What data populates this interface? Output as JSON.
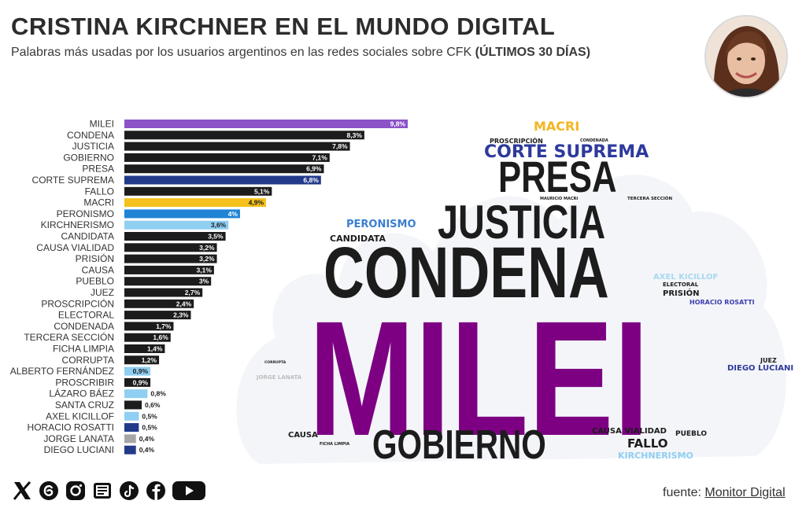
{
  "header": {
    "title": "CRISTINA KIRCHNER EN EL MUNDO DIGITAL",
    "subtitle": "Palabras más usadas por los usuarios argentinos en las redes sociales sobre CFK",
    "subtitle_bold": "(ÚLTIMOS 30 DÍAS)"
  },
  "chart_data": {
    "type": "bar",
    "orientation": "horizontal",
    "title": "Palabras más usadas por los usuarios argentinos en las redes sociales sobre CFK (ÚLTIMOS 30 DÍAS)",
    "xlabel": "",
    "ylabel": "",
    "unit": "%",
    "xlim": [
      0,
      9.8
    ],
    "categories": [
      "MILEI",
      "CONDENA",
      "JUSTICIA",
      "GOBIERNO",
      "PRESA",
      "CORTE SUPREMA",
      "FALLO",
      "MACRI",
      "PERONISMO",
      "KIRCHNERISMO",
      "CANDIDATA",
      "CAUSA VIALIDAD",
      "PRISIÓN",
      "CAUSA",
      "PUEBLO",
      "JUEZ",
      "PROSCRIPCIÓN",
      "ELECTORAL",
      "CONDENADA",
      "TERCERA SECCIÓN",
      "FICHA LIMPIA",
      "CORRUPTA",
      "ALBERTO FERNÁNDEZ",
      "PROSCRIBIR",
      "LÁZARO BÁEZ",
      "SANTA CRUZ",
      "AXEL KICILLOF",
      "HORACIO ROSATTI",
      "JORGE LANATA",
      "DIEGO LUCIANI"
    ],
    "values": [
      9.8,
      8.3,
      7.8,
      7.1,
      6.9,
      6.8,
      5.1,
      4.9,
      4.0,
      3.6,
      3.5,
      3.2,
      3.2,
      3.1,
      3.0,
      2.7,
      2.4,
      2.3,
      1.7,
      1.6,
      1.4,
      1.2,
      0.9,
      0.9,
      0.8,
      0.6,
      0.5,
      0.5,
      0.4,
      0.4
    ],
    "labels": [
      "9,8%",
      "8,3%",
      "7,8%",
      "7,1%",
      "6,9%",
      "6,8%",
      "5,1%",
      "4,9%",
      "4%",
      "3,6%",
      "3,5%",
      "3,2%",
      "3,2%",
      "3,1%",
      "3%",
      "2,7%",
      "2,4%",
      "2,3%",
      "1,7%",
      "1,6%",
      "1,4%",
      "1,2%",
      "0,9%",
      "0,9%",
      "0,8%",
      "0,6%",
      "0,5%",
      "0,5%",
      "0,4%",
      "0,4%"
    ],
    "colors": [
      "#8c52c8",
      "#1c1c1c",
      "#1c1c1c",
      "#1c1c1c",
      "#1c1c1c",
      "#233a8a",
      "#1c1c1c",
      "#f4c11d",
      "#1f83d6",
      "#8ecff2",
      "#1c1c1c",
      "#1c1c1c",
      "#1c1c1c",
      "#1c1c1c",
      "#1c1c1c",
      "#1c1c1c",
      "#1c1c1c",
      "#1c1c1c",
      "#1c1c1c",
      "#1c1c1c",
      "#1c1c1c",
      "#1c1c1c",
      "#8ecff2",
      "#1c1c1c",
      "#8ecff2",
      "#1c1c1c",
      "#8ecff2",
      "#233a8a",
      "#a6a6a6",
      "#233a8a"
    ]
  },
  "wordcloud": [
    {
      "text": "MILEI",
      "color": "#7d0083"
    },
    {
      "text": "CONDENA",
      "color": "#1c1c1c"
    },
    {
      "text": "JUSTICIA",
      "color": "#1c1c1c"
    },
    {
      "text": "PRESA",
      "color": "#1c1c1c"
    },
    {
      "text": "GOBIERNO",
      "color": "#1c1c1c"
    },
    {
      "text": "CORTE SUPREMA",
      "color": "#2d3a9c"
    },
    {
      "text": "MACRI",
      "color": "#f4b520"
    },
    {
      "text": "PERONISMO",
      "color": "#3b7fd0"
    },
    {
      "text": "CANDIDATA",
      "color": "#1c1c1c"
    },
    {
      "text": "FALLO",
      "color": "#1c1c1c"
    },
    {
      "text": "CAUSA VIALIDAD",
      "color": "#1c1c1c"
    },
    {
      "text": "KIRCHNERISMO",
      "color": "#8ecff2"
    },
    {
      "text": "AXEL KICILLOF",
      "color": "#a8d8f2"
    },
    {
      "text": "ELECTORAL",
      "color": "#1c1c1c"
    },
    {
      "text": "PRISIÓN",
      "color": "#1c1c1c"
    },
    {
      "text": "HORACIO ROSATTI",
      "color": "#3c3fae"
    },
    {
      "text": "JUEZ",
      "color": "#1c1c1c"
    },
    {
      "text": "DIEGO LUCIANI",
      "color": "#2d3a9c"
    },
    {
      "text": "CAUSA",
      "color": "#1c1c1c"
    },
    {
      "text": "PUEBLO",
      "color": "#1c1c1c"
    },
    {
      "text": "PROSCRIPCIÓN",
      "color": "#1c1c1c"
    },
    {
      "text": "CONDENADA",
      "color": "#1c1c1c"
    },
    {
      "text": "MAURICIO MACRI",
      "color": "#1c1c1c"
    },
    {
      "text": "TERCERA SECCIÓN",
      "color": "#1c1c1c"
    },
    {
      "text": "JORGE LANATA",
      "color": "#bdbdbd"
    },
    {
      "text": "FICHA LIMPIA",
      "color": "#1c1c1c"
    },
    {
      "text": "CORRUPTA",
      "color": "#1c1c1c"
    }
  ],
  "social": [
    "x-icon",
    "threads-icon",
    "instagram-icon",
    "newsletter-icon",
    "tiktok-icon",
    "facebook-icon",
    "youtube-icon"
  ],
  "footer": {
    "source_prefix": "fuente: ",
    "source_name": "Monitor Digital"
  }
}
